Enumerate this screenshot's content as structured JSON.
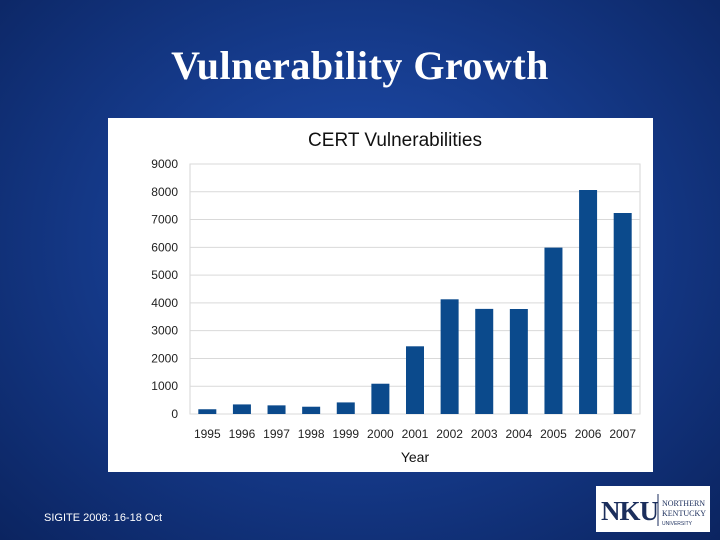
{
  "slide": {
    "title": "Vulnerability Growth",
    "footer": "SIGITE 2008: 16-18 Oct"
  },
  "logo": {
    "mark": "NKU",
    "line1": "NORTHERN",
    "line2": "KENTUCKY",
    "line3": "UNIVERSITY",
    "color": "#1b2e5c"
  },
  "chart_data": {
    "type": "bar",
    "title": "CERT Vulnerabilities",
    "xlabel": "Year",
    "ylabel": "",
    "categories": [
      "1995",
      "1996",
      "1997",
      "1998",
      "1999",
      "2000",
      "2001",
      "2002",
      "2003",
      "2004",
      "2005",
      "2006",
      "2007"
    ],
    "values": [
      171,
      345,
      311,
      262,
      417,
      1090,
      2437,
      4129,
      3784,
      3780,
      5990,
      8064,
      7236
    ],
    "ylim": [
      0,
      9000
    ],
    "yticks": [
      0,
      1000,
      2000,
      3000,
      4000,
      5000,
      6000,
      7000,
      8000,
      9000
    ],
    "grid": true,
    "legend": "none",
    "bar_color": "#0b4a8c"
  }
}
